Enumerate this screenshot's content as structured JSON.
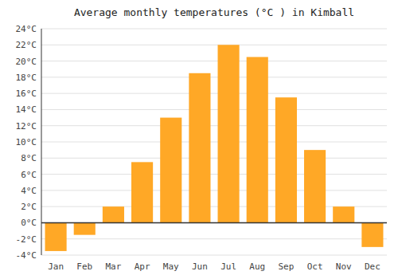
{
  "chart_data": {
    "type": "bar",
    "title": "Average monthly temperatures (°C ) in Kimball",
    "categories": [
      "Jan",
      "Feb",
      "Mar",
      "Apr",
      "May",
      "Jun",
      "Jul",
      "Aug",
      "Sep",
      "Oct",
      "Nov",
      "Dec"
    ],
    "values": [
      -3.5,
      -1.5,
      2.0,
      7.5,
      13.0,
      18.5,
      22.0,
      20.5,
      15.5,
      9.0,
      2.0,
      -3.0
    ],
    "color": "#FFA826",
    "ylim": [
      -4,
      24
    ],
    "yticks": [
      {
        "value": -4,
        "label": "-4°C"
      },
      {
        "value": -2,
        "label": "-2°C"
      },
      {
        "value": 0,
        "label": "0°C"
      },
      {
        "value": 2,
        "label": "2°C"
      },
      {
        "value": 4,
        "label": "4°C"
      },
      {
        "value": 6,
        "label": "6°C"
      },
      {
        "value": 8,
        "label": "8°C"
      },
      {
        "value": 10,
        "label": "10°C"
      },
      {
        "value": 12,
        "label": "12°C"
      },
      {
        "value": 14,
        "label": "14°C"
      },
      {
        "value": 16,
        "label": "16°C"
      },
      {
        "value": 18,
        "label": "18°C"
      },
      {
        "value": 20,
        "label": "20°C"
      },
      {
        "value": 22,
        "label": "22°C"
      },
      {
        "value": 24,
        "label": "24°C"
      }
    ],
    "grid": true
  }
}
